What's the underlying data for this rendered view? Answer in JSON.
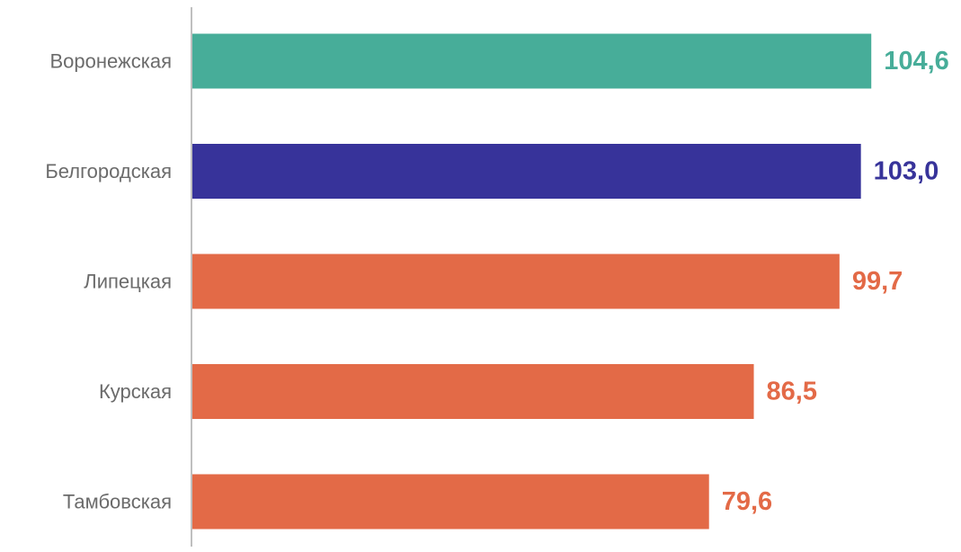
{
  "chart_data": {
    "type": "bar",
    "orientation": "horizontal",
    "categories": [
      "Воронежская",
      "Белгородская",
      "Липецкая",
      "Курская",
      "Тамбовская"
    ],
    "values": [
      104.6,
      103.0,
      99.7,
      86.5,
      79.6
    ],
    "value_labels": [
      "104,6",
      "103,0",
      "99,7",
      "86,5",
      "79,6"
    ],
    "bar_colors": [
      "#47ad99",
      "#37339a",
      "#e36a47",
      "#e36a47",
      "#e36a47"
    ],
    "title": "",
    "xlabel": "",
    "ylabel": "",
    "xlim": [
      0,
      110
    ],
    "grid": false,
    "legend": "none",
    "axis_color": "#bfbfbf",
    "category_label_color": "#6b6b6b"
  }
}
